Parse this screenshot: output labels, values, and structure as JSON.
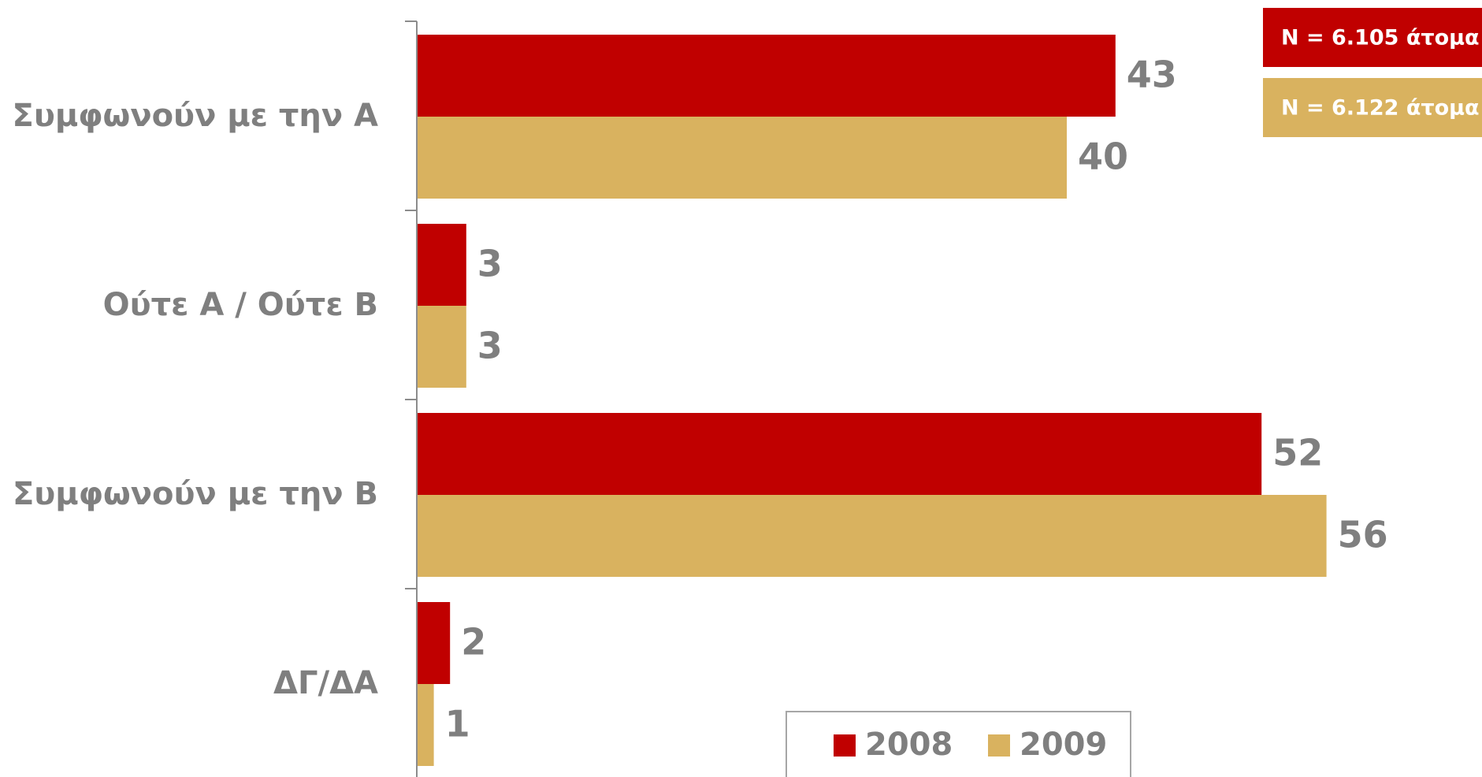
{
  "chart_data": {
    "type": "bar",
    "orientation": "horizontal",
    "categories": [
      "Συμφωνούν με την Α",
      "Ούτε Α / Ούτε Β",
      "Συμφωνούν με την Β",
      "ΔΓ/ΔΑ"
    ],
    "series": [
      {
        "name": "2008",
        "values": [
          43,
          3,
          52,
          2
        ],
        "color": "#c00000"
      },
      {
        "name": "2009",
        "values": [
          40,
          3,
          56,
          1
        ],
        "color": "#d9b25f"
      }
    ],
    "title": "",
    "xlabel": "",
    "ylabel": "",
    "xlim": [
      0,
      60
    ],
    "grid": false,
    "legend_position": "bottom",
    "sample_notes": [
      {
        "text": "N = 6.105 άτομα",
        "color": "#c00000"
      },
      {
        "text": "N = 6.122 άτομα",
        "color": "#d9b25f"
      }
    ]
  }
}
